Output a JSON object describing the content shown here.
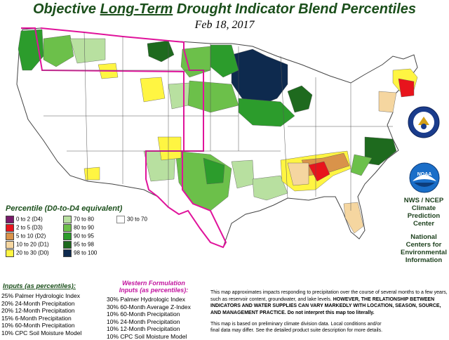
{
  "title": {
    "pre": "Objective ",
    "emph": "Long-Term",
    "post": " Drought Indicator Blend Percentiles"
  },
  "date": "Feb 18, 2017",
  "legend": {
    "title": "Percentile  (D0-to-D4 equivalent)",
    "items": [
      {
        "label": "0 to 2  (D4)",
        "color": "#7a1a6a"
      },
      {
        "label": "2 to 5  (D3)",
        "color": "#e8141c"
      },
      {
        "label": "5 to 10  (D2)",
        "color": "#d9934a"
      },
      {
        "label": "10 to 20  (D1)",
        "color": "#f5d6a0"
      },
      {
        "label": "20 to 30  (D0)",
        "color": "#fff542"
      },
      {
        "label": "70 to 80",
        "color": "#b8e0a0"
      },
      {
        "label": "80 to 90",
        "color": "#6cc04a"
      },
      {
        "label": "90 to 95",
        "color": "#2c9c2c"
      },
      {
        "label": "95 to 98",
        "color": "#1e6a1e"
      },
      {
        "label": "98 to 100",
        "color": "#0e2a4e"
      },
      {
        "label": "30 to 70",
        "color": "#ffffff"
      }
    ]
  },
  "agency": {
    "ncep": "NWS / NCEP",
    "cpc1": "Climate",
    "cpc2": "Prediction",
    "cpc3": "Center",
    "ncei1": "National",
    "ncei2": "Centers for",
    "ncei3": "Environmental",
    "ncei4": "Information",
    "logo_text": "NOAA"
  },
  "inputs": {
    "title": "Inputs (as percentiles):",
    "lines": [
      "25%  Palmer Hydrologic Index",
      "20%  24-Month Precipitation",
      "20%  12-Month Precipitation",
      "15%  6-Month Precipitation",
      "10%  60-Month Precipitation",
      "10%  CPC Soil Moisture Model"
    ]
  },
  "west": {
    "title1": "Western Formulation",
    "title2": "Inputs (as percentiles):",
    "lines": [
      "30% Palmer Hydrologic Index",
      "30% 60-Month Average Z-Index",
      "10% 60-Month Precipitation",
      "10% 24-Month Precipitation",
      "10% 12-Month Precipitation",
      "10% CPC Soil Moisture Model"
    ]
  },
  "disclaimer": {
    "p1": "This map approximates impacts responding to precipitation over the course of several months to a few years, such as reservoir content, groundwater, and lake levels.",
    "p2": "HOWEVER, THE RELATIONSHIP BETWEEN INDICATORS AND WATER SUPPLIES CAN VARY MARKEDLY WITH LOCATION, SEASON, SOURCE, AND MANAGEMENT PRACTICE.",
    "p3": "Do not interpret this map too literally."
  },
  "note": {
    "l1": "This map is based on preliminary climate division data. Local conditions and/or",
    "l2": "final data may differ. See the detailed product suite description for more details."
  },
  "colors": {
    "title": "#1b4f1b",
    "western_boundary": "#e0139b",
    "state_lines": "#444444"
  }
}
